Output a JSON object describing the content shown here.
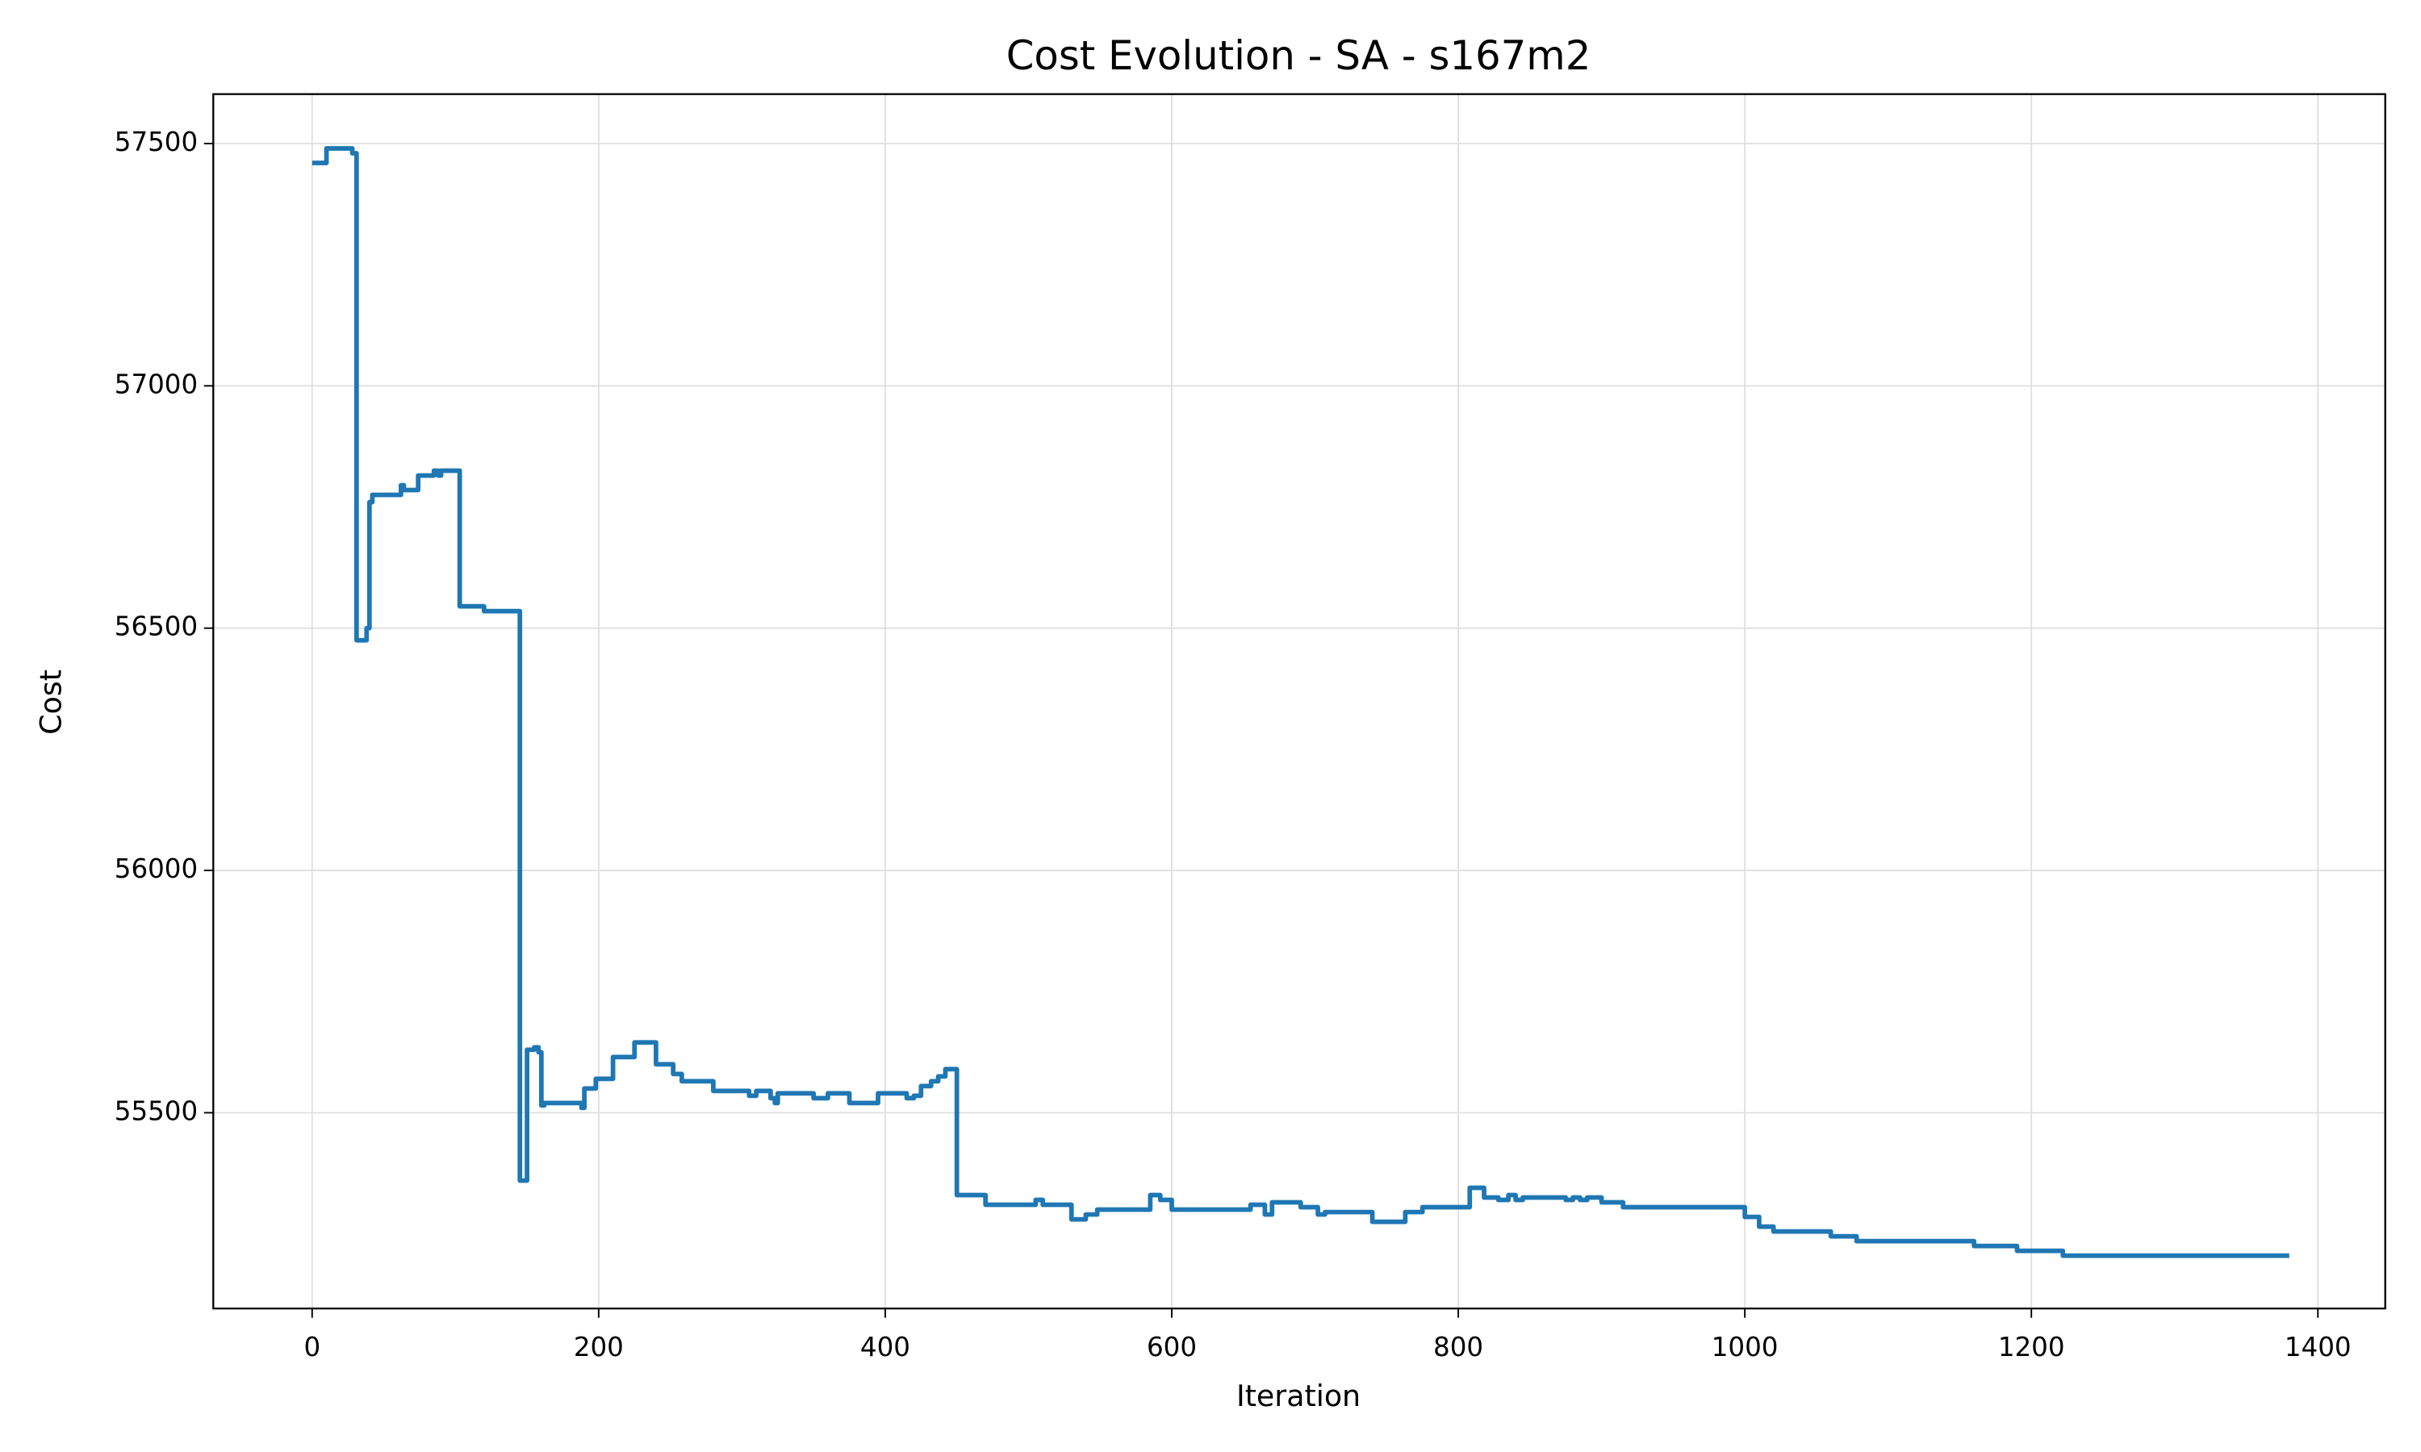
{
  "chart_data": {
    "type": "line",
    "title": "Cost Evolution - SA - s167m2",
    "x_label": "Iteration",
    "y_label": "Cost",
    "drawstyle": "steps-post",
    "grid": true,
    "xlim": [
      -69,
      1447
    ],
    "xticks": [
      0,
      200,
      400,
      600,
      800,
      1000,
      1200,
      1400
    ],
    "ylim": [
      55096,
      57602
    ],
    "yticks": [
      55500,
      56000,
      56500,
      57000,
      57500
    ],
    "x": [
      0,
      10,
      28,
      31,
      38,
      40,
      42,
      62,
      64,
      74,
      85,
      88,
      90,
      103,
      120,
      145,
      150,
      155,
      158,
      160,
      162,
      188,
      190,
      198,
      210,
      225,
      240,
      252,
      258,
      280,
      305,
      310,
      320,
      323,
      325,
      350,
      360,
      375,
      395,
      415,
      420,
      425,
      432,
      437,
      442,
      450,
      470,
      505,
      510,
      530,
      540,
      548,
      585,
      592,
      600,
      655,
      665,
      670,
      690,
      702,
      707,
      740,
      763,
      775,
      808,
      818,
      828,
      835,
      840,
      845,
      875,
      880,
      885,
      890,
      900,
      915,
      1000,
      1010,
      1020,
      1060,
      1078,
      1160,
      1190,
      1222,
      1380
    ],
    "series": [
      {
        "color": "#1f77b4",
        "values": [
          57460,
          57490,
          57480,
          56475,
          56500,
          56760,
          56775,
          56795,
          56785,
          56815,
          56825,
          56815,
          56825,
          56545,
          56535,
          55360,
          55630,
          55635,
          55625,
          55515,
          55520,
          55510,
          55550,
          55570,
          55615,
          55645,
          55600,
          55580,
          55565,
          55545,
          55535,
          55545,
          55530,
          55520,
          55540,
          55530,
          55540,
          55520,
          55540,
          55530,
          55535,
          55555,
          55565,
          55575,
          55590,
          55330,
          55310,
          55320,
          55310,
          55280,
          55290,
          55300,
          55330,
          55320,
          55300,
          55310,
          55290,
          55315,
          55305,
          55290,
          55295,
          55275,
          55295,
          55305,
          55345,
          55325,
          55320,
          55330,
          55320,
          55325,
          55320,
          55325,
          55320,
          55325,
          55315,
          55305,
          55285,
          55265,
          55255,
          55245,
          55235,
          55225,
          55215,
          55205,
          55205
        ]
      }
    ]
  }
}
